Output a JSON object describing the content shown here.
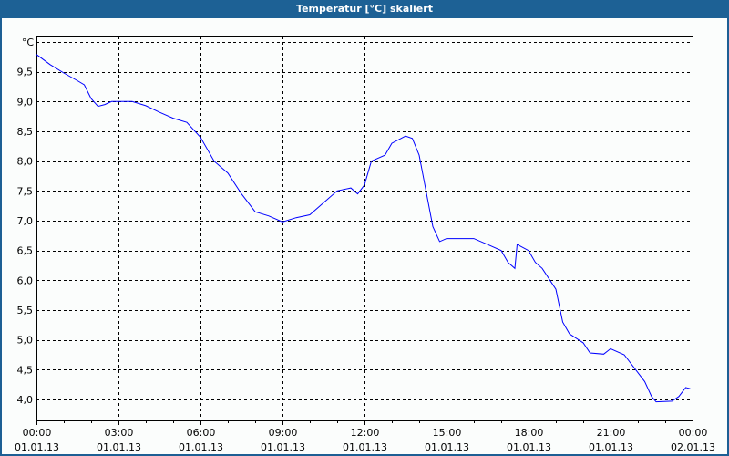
{
  "window": {
    "title": "Temperatur [°C] skaliert"
  },
  "chart_data": {
    "type": "line",
    "title": "Temperatur [°C] skaliert",
    "ylabel": "°C",
    "ylim": [
      3.65,
      10.1
    ],
    "xlim": [
      "00:00",
      "24:00"
    ],
    "grid": true,
    "y_ticks": [
      "9,5",
      "9,0",
      "8,5",
      "8,0",
      "7,5",
      "7,0",
      "6,5",
      "6,0",
      "5,5",
      "5,0",
      "4,5",
      "4,0"
    ],
    "y_tick_values": [
      9.5,
      9.0,
      8.5,
      8.0,
      7.5,
      7.0,
      6.5,
      6.0,
      5.5,
      5.0,
      4.5,
      4.0
    ],
    "x_ticks": [
      {
        "time": "00:00",
        "date": "01.01.13"
      },
      {
        "time": "03:00",
        "date": "01.01.13"
      },
      {
        "time": "06:00",
        "date": "01.01.13"
      },
      {
        "time": "09:00",
        "date": "01.01.13"
      },
      {
        "time": "12:00",
        "date": "01.01.13"
      },
      {
        "time": "15:00",
        "date": "01.01.13"
      },
      {
        "time": "18:00",
        "date": "01.01.13"
      },
      {
        "time": "21:00",
        "date": "01.01.13"
      },
      {
        "time": "00:00",
        "date": "02.01.13"
      }
    ],
    "line_color": "#0000ff",
    "series": [
      {
        "x": [
          "00:00",
          "00:30",
          "01:00",
          "01:30",
          "01:45",
          "02:00",
          "02:15",
          "02:30",
          "02:45",
          "03:00",
          "03:30",
          "04:00",
          "04:30",
          "05:00",
          "05:30",
          "06:00",
          "06:30",
          "07:00",
          "07:30",
          "08:00",
          "08:30",
          "09:00",
          "09:30",
          "10:00",
          "10:30",
          "11:00",
          "11:30",
          "11:45",
          "12:00",
          "12:15",
          "12:45",
          "13:00",
          "13:30",
          "13:45",
          "14:00",
          "14:15",
          "14:30",
          "14:45",
          "15:00",
          "16:00",
          "16:30",
          "17:00",
          "17:15",
          "17:30",
          "17:35",
          "18:00",
          "18:15",
          "18:30",
          "19:00",
          "19:15",
          "19:30",
          "20:00",
          "20:15",
          "20:45",
          "21:00",
          "21:30",
          "22:00",
          "22:15",
          "22:30",
          "22:40",
          "23:15",
          "23:30",
          "23:45",
          "23:55"
        ],
        "y": [
          9.79,
          9.62,
          9.48,
          9.35,
          9.28,
          9.05,
          8.92,
          8.95,
          9.0,
          9.0,
          9.0,
          8.93,
          8.82,
          8.72,
          8.65,
          8.4,
          8.0,
          7.8,
          7.45,
          7.15,
          7.08,
          6.98,
          7.05,
          7.1,
          7.3,
          7.5,
          7.55,
          7.45,
          7.6,
          8.0,
          8.1,
          8.3,
          8.42,
          8.38,
          8.1,
          7.5,
          6.9,
          6.65,
          6.7,
          6.7,
          6.6,
          6.5,
          6.3,
          6.2,
          6.6,
          6.5,
          6.3,
          6.2,
          5.85,
          5.3,
          5.1,
          4.95,
          4.78,
          4.76,
          4.85,
          4.75,
          4.45,
          4.3,
          4.05,
          3.96,
          3.97,
          4.05,
          4.2,
          4.18
        ]
      }
    ]
  }
}
